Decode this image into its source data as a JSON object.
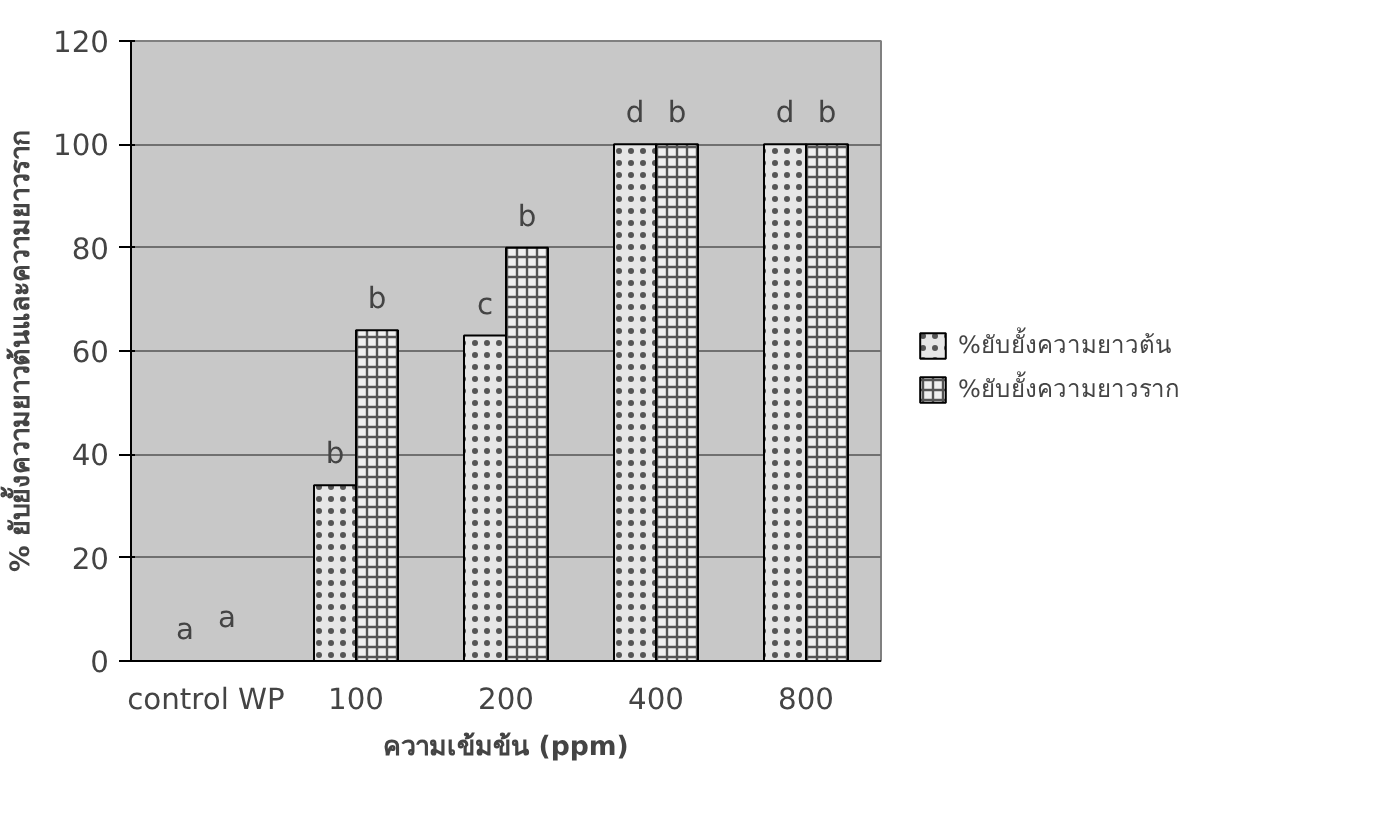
{
  "chart_data": {
    "type": "bar",
    "xlabel": "ความเข้มข้น (ppm)",
    "ylabel": "% ยับยั้งความยาวต้นและความยาวราก",
    "categories": [
      "control WP",
      "100",
      "200",
      "400",
      "800"
    ],
    "series": [
      {
        "name": "%ยับยั้งความยาวต้น",
        "color": "#e6e6e6",
        "values": [
          0,
          34,
          63,
          100,
          100
        ]
      },
      {
        "name": "%ยับยั้งความยาวราก",
        "color": "#f0f0f0",
        "values": [
          0,
          64,
          80,
          100,
          100
        ]
      }
    ],
    "ylim": [
      0,
      120
    ],
    "yticks": [
      0,
      20,
      40,
      60,
      80,
      100,
      120
    ],
    "grid": "y",
    "legend": "right",
    "annotations": [
      {
        "text": "a",
        "x": "control WP",
        "y": 0
      },
      {
        "text": "a",
        "x": "control WP",
        "y": 0
      },
      {
        "text": "b",
        "x": "100",
        "y": 34
      },
      {
        "text": "b",
        "x": "100",
        "y": 64
      },
      {
        "text": "c",
        "x": "200",
        "y": 63
      },
      {
        "text": "b",
        "x": "200",
        "y": 80
      },
      {
        "text": "d",
        "x": "400",
        "y": 100
      },
      {
        "text": "b",
        "x": "400",
        "y": 100
      },
      {
        "text": "d",
        "x": "800",
        "y": 100
      },
      {
        "text": "b",
        "x": "800",
        "y": 100
      }
    ]
  }
}
